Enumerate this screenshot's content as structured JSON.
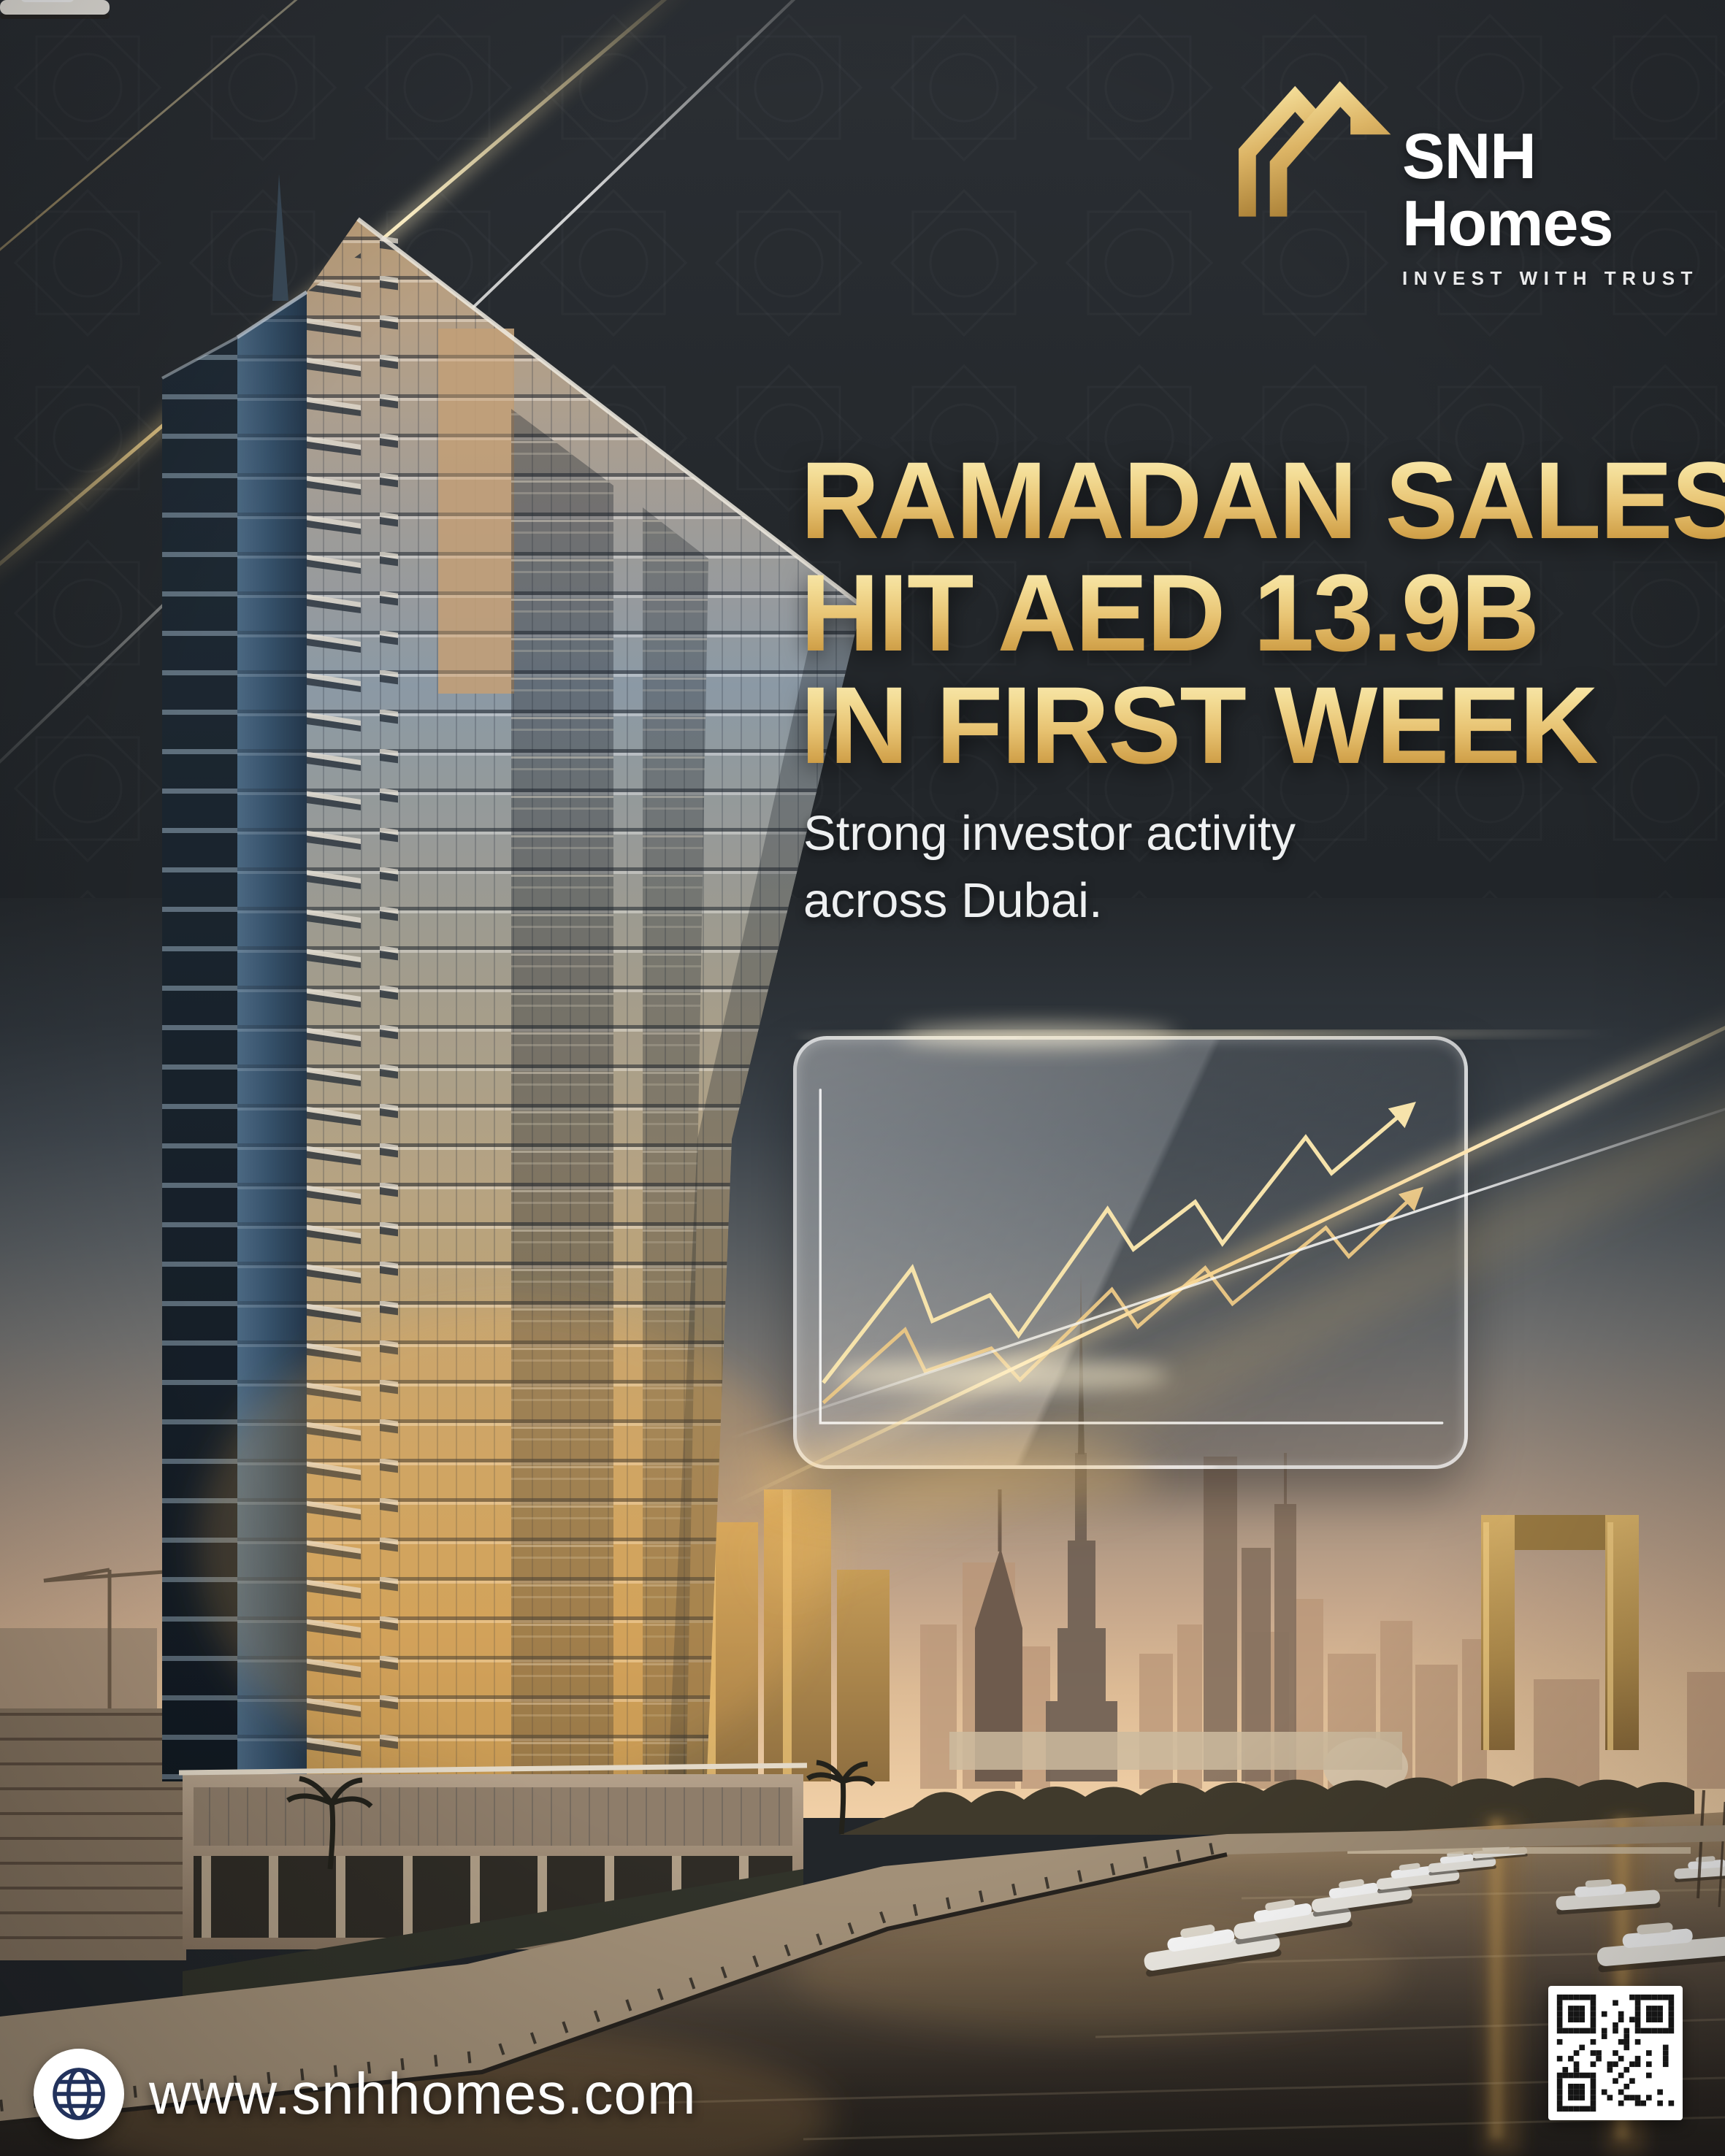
{
  "brand": {
    "name": "SNH Homes",
    "tagline": "INVEST WITH TRUST"
  },
  "headline": {
    "lines": [
      "RAMADAN SALES",
      "HIT AED 13.9B",
      "IN FIRST WEEK"
    ]
  },
  "subheadline": {
    "lines": [
      "Strong investor activity",
      "across Dubai."
    ]
  },
  "footer": {
    "website": "www.snhhomes.com"
  },
  "decor": {
    "trend_chart": {
      "type": "line",
      "series": 2,
      "trend": "upward",
      "decorative": true
    }
  },
  "colors": {
    "gold": "#d9ae5f",
    "gold_light": "#f6e3a1",
    "gold_dark": "#b8863b",
    "background_dark": "#22262a",
    "text_white": "#f2f3f4",
    "globe_navy": "#22325c",
    "sunset_sky": "#eccaa2",
    "water_dark": "#2b2622"
  }
}
